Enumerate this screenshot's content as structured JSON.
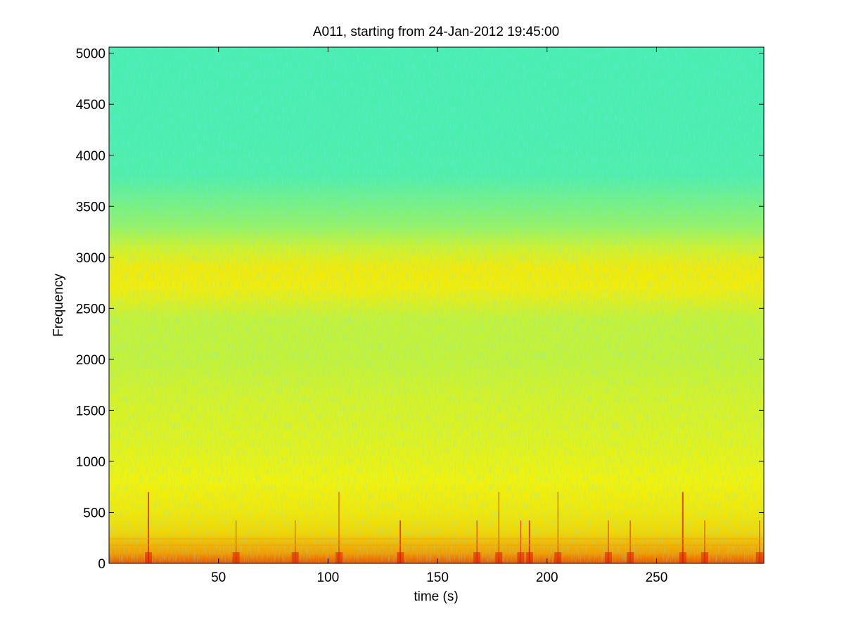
{
  "chart_data": {
    "type": "heatmap",
    "title": "A011, starting from 24-Jan-2012 19:45:00",
    "xlabel": "time (s)",
    "ylabel": "Frequency",
    "xlim": [
      0,
      299
    ],
    "ylim": [
      0,
      5060
    ],
    "xticks": [
      50,
      100,
      150,
      200,
      250
    ],
    "xtick_labels": [
      "50",
      "100",
      "150",
      "200",
      "250"
    ],
    "yticks": [
      0,
      500,
      1000,
      1500,
      2000,
      2500,
      3000,
      3500,
      4000,
      4500,
      5000
    ],
    "ytick_labels": [
      "0",
      "500",
      "1000",
      "1500",
      "2000",
      "2500",
      "3000",
      "3500",
      "4000",
      "4500",
      "5000"
    ],
    "grid": false,
    "colormap": "jet",
    "colors": {
      "low": "#2ff0c8",
      "mid_low": "#8cf26a",
      "mid": "#f2f20a",
      "high": "#f0a000",
      "peak": "#e01a00"
    },
    "intensity_profile": {
      "frequency": [
        0,
        100,
        300,
        500,
        800,
        1200,
        1600,
        2000,
        2400,
        2700,
        2900,
        3100,
        3300,
        3500,
        3800,
        4200,
        5060
      ],
      "level": [
        0.92,
        0.82,
        0.7,
        0.64,
        0.6,
        0.58,
        0.57,
        0.55,
        0.55,
        0.62,
        0.63,
        0.56,
        0.5,
        0.44,
        0.35,
        0.3,
        0.28
      ]
    },
    "transient_events_s": [
      18,
      58,
      85,
      105,
      133,
      168,
      178,
      188,
      192,
      205,
      228,
      238,
      262,
      272,
      297
    ]
  }
}
